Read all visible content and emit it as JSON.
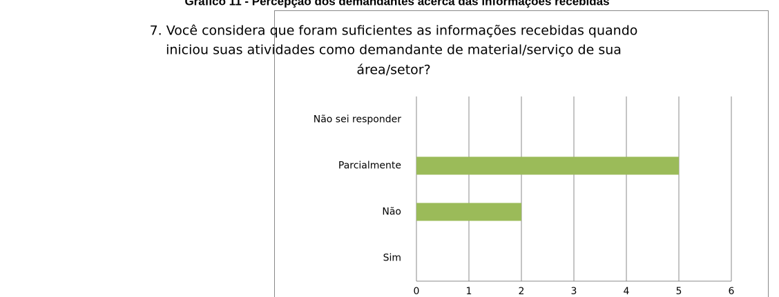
{
  "caption": "Gráfico 11 - Percepção dos demandantes acerca das informações recebidas",
  "chart_data": {
    "type": "barh",
    "title": [
      "7. Você considera que foram suficientes as informações recebidas quando",
      "iniciou suas atividades como demandante de material/serviço de sua",
      "área/setor?"
    ],
    "categories": [
      "Sim",
      "Não",
      "Parcialmente",
      "Não sei responder"
    ],
    "values": [
      0,
      2,
      5,
      0
    ],
    "color": "#9bbb59",
    "xlim": [
      0,
      6
    ],
    "xticks": [
      0,
      1,
      2,
      3,
      4,
      5,
      6
    ],
    "grid": true
  }
}
